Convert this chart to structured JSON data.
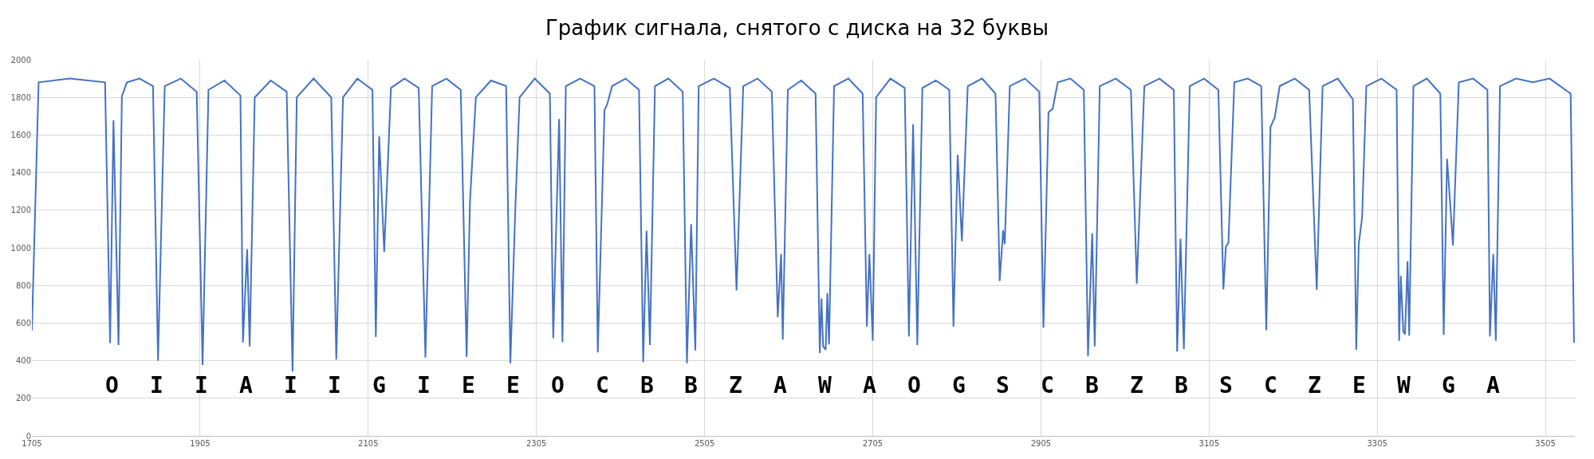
{
  "chart_data": {
    "type": "line",
    "title": "График сигнала, снятого с диска на 32 буквы",
    "x": [
      1705,
      1713,
      1750,
      1792,
      1798,
      1802,
      1808,
      1812,
      1818,
      1833,
      1849,
      1855,
      1863,
      1882,
      1901,
      1908,
      1915,
      1934,
      1953,
      1956,
      1961,
      1964,
      1970,
      1989,
      2008,
      2015,
      2020,
      2040,
      2061,
      2067,
      2075,
      2092,
      2110,
      2114,
      2118,
      2124,
      2132,
      2148,
      2165,
      2173,
      2181,
      2198,
      2215,
      2222,
      2226,
      2233,
      2251,
      2269,
      2274,
      2280,
      2285,
      2303,
      2321,
      2325,
      2332,
      2336,
      2340,
      2357,
      2374,
      2378,
      2386,
      2389,
      2395,
      2411,
      2427,
      2432,
      2436,
      2440,
      2446,
      2462,
      2479,
      2484,
      2489,
      2494,
      2498,
      2516,
      2535,
      2543,
      2551,
      2568,
      2585,
      2592,
      2596,
      2598,
      2604,
      2620,
      2637,
      2642,
      2644,
      2646,
      2649,
      2651,
      2653,
      2659,
      2676,
      2693,
      2698,
      2701,
      2705,
      2709,
      2726,
      2743,
      2748,
      2753,
      2758,
      2764,
      2780,
      2796,
      2801,
      2806,
      2811,
      2818,
      2835,
      2851,
      2856,
      2860,
      2862,
      2868,
      2886,
      2903,
      2908,
      2914,
      2919,
      2925,
      2940,
      2956,
      2961,
      2966,
      2969,
      2975,
      2994,
      3012,
      3019,
      3028,
      3046,
      3063,
      3067,
      3071,
      3075,
      3082,
      3099,
      3116,
      3122,
      3125,
      3128,
      3135,
      3151,
      3167,
      3173,
      3178,
      3183,
      3189,
      3207,
      3224,
      3233,
      3240,
      3258,
      3276,
      3280,
      3283,
      3287,
      3292,
      3310,
      3328,
      3331,
      3333,
      3336,
      3338,
      3341,
      3343,
      3348,
      3364,
      3380,
      3384,
      3388,
      3392,
      3395,
      3402,
      3419,
      3436,
      3439,
      3443,
      3446,
      3451,
      3470,
      3490,
      3510,
      3535,
      3539
    ],
    "series": [
      {
        "color": "#4472c4",
        "values": [
          561,
          1880,
          1900,
          1880,
          493,
          1678,
          483,
          1805,
          1880,
          1900,
          1860,
          399,
          1860,
          1900,
          1830,
          377,
          1840,
          1890,
          1810,
          497,
          992,
          476,
          1800,
          1890,
          1830,
          342,
          1800,
          1900,
          1800,
          406,
          1800,
          1900,
          1840,
          526,
          1593,
          978,
          1850,
          1900,
          1850,
          416,
          1860,
          1900,
          1840,
          420,
          1247,
          1800,
          1890,
          1860,
          387,
          1218,
          1800,
          1900,
          1820,
          519,
          1685,
          498,
          1860,
          1900,
          1860,
          444,
          1734,
          1760,
          1860,
          1900,
          1840,
          392,
          1091,
          483,
          1860,
          1900,
          1830,
          387,
          1126,
          455,
          1860,
          1900,
          1850,
          773,
          1860,
          1900,
          1830,
          632,
          967,
          512,
          1840,
          1890,
          1820,
          441,
          731,
          476,
          458,
          759,
          486,
          1860,
          1900,
          1820,
          582,
          967,
          505,
          1800,
          1900,
          1850,
          529,
          1657,
          483,
          1850,
          1890,
          1840,
          582,
          1494,
          1035,
          1860,
          1900,
          1820,
          823,
          1094,
          1020,
          1860,
          1900,
          1830,
          575,
          1720,
          1740,
          1880,
          1900,
          1840,
          424,
          1077,
          476,
          1860,
          1900,
          1840,
          808,
          1860,
          1900,
          1840,
          448,
          1049,
          462,
          1860,
          1900,
          1840,
          780,
          1006,
          1028,
          1880,
          1900,
          1860,
          561,
          1642,
          1692,
          1860,
          1900,
          1840,
          777,
          1860,
          1900,
          1790,
          458,
          1020,
          1162,
          1860,
          1900,
          1840,
          505,
          851,
          554,
          540,
          929,
          533,
          1860,
          1900,
          1820,
          537,
          1473,
          1218,
          1013,
          1880,
          1900,
          1840,
          529,
          967,
          505,
          1860,
          1900,
          1880,
          1900,
          1820,
          495
        ]
      }
    ],
    "xlim": [
      1705,
      3540
    ],
    "xticks": [
      1705,
      1905,
      2105,
      2305,
      2505,
      2705,
      2905,
      3105,
      3305,
      3505
    ],
    "ylim": [
      0,
      2000
    ],
    "yticks": [
      0,
      200,
      400,
      600,
      800,
      1000,
      1200,
      1400,
      1600,
      1800,
      2000
    ],
    "grid": true,
    "marker": "none",
    "line_style": "solid",
    "annotations": [
      "O",
      "I",
      "I",
      "A",
      "I",
      "I",
      "G",
      "I",
      "E",
      "E",
      "O",
      "C",
      "B",
      "B",
      "Z",
      "A",
      "W",
      "A",
      "O",
      "G",
      "S",
      "C",
      "B",
      "Z",
      "B",
      "S",
      "C",
      "Z",
      "E",
      "W",
      "G",
      "A"
    ]
  }
}
